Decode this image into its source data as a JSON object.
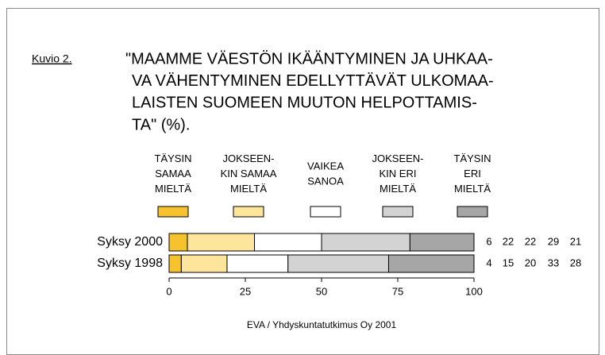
{
  "chart_data": {
    "type": "bar",
    "orientation": "horizontal",
    "stacked": true,
    "figure_label": "Kuvio 2.",
    "title_lines": [
      "\"MAAMME VÄESTÖN IKÄÄNTYMINEN JA UHKAA-",
      "VA VÄHENTYMINEN EDELLYTTÄVÄT ULKOMAA-",
      "LAISTEN SUOMEEN MUUTON HELPOTTAMIS-",
      "TA\" (%)."
    ],
    "categories": [
      "Syksy 2000",
      "Syksy 1998"
    ],
    "series": [
      {
        "name": "TÄYSIN\nSAMAA\nMIELTÄ",
        "color": "#f6c32e",
        "values": [
          6,
          4
        ]
      },
      {
        "name": "JOKSEEN-\nKIN SAMAA\nMIELTÄ",
        "color": "#fde69b",
        "values": [
          22,
          15
        ]
      },
      {
        "name": "VAIKEA\nSANOA",
        "color": "#ffffff",
        "values": [
          22,
          20
        ]
      },
      {
        "name": "JOKSEEN-\nKIN ERI\nMIELTÄ",
        "color": "#d3d3d3",
        "values": [
          29,
          33
        ]
      },
      {
        "name": "TÄYSIN\nERI\nMIELTÄ",
        "color": "#a6a6a6",
        "values": [
          21,
          28
        ]
      }
    ],
    "xlim": [
      0,
      100
    ],
    "xticks": [
      0,
      25,
      50,
      75,
      100
    ],
    "source": "EVA / Yhdyskuntatutkimus Oy 2001"
  }
}
